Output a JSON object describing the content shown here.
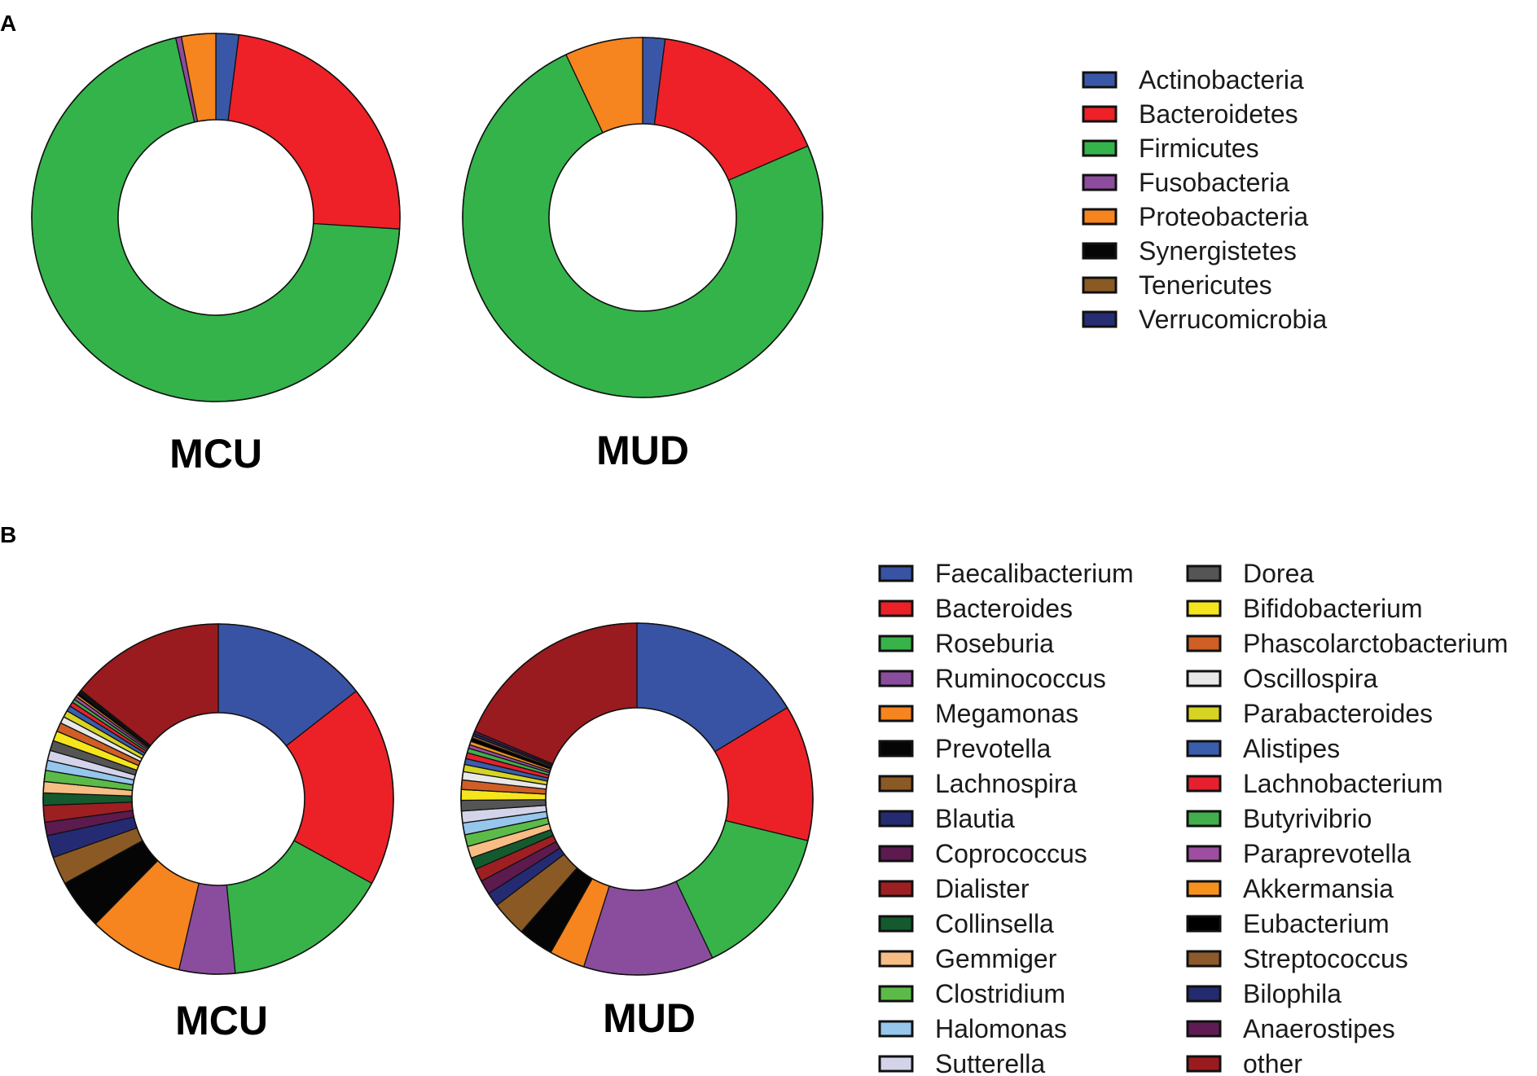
{
  "panels": {
    "a_label": "A",
    "b_label": "B"
  },
  "chart_data": [
    {
      "type": "pie",
      "panel": "A",
      "variant": "donut",
      "legend_position": "right",
      "categories": [
        "Actinobacteria",
        "Bacteroidetes",
        "Firmicutes",
        "Fusobacteria",
        "Proteobacteria",
        "Synergistetes",
        "Tenericutes",
        "Verrucomicrobia"
      ],
      "colors": [
        "#3a57a7",
        "#ed2127",
        "#34b34a",
        "#8e4c9e",
        "#f6841f",
        "#050505",
        "#8a5a24",
        "#262d72"
      ],
      "series": [
        {
          "name": "MCU",
          "values": [
            2.0,
            24.0,
            70.5,
            0.5,
            3.0,
            0.0,
            0.0,
            0.0
          ]
        },
        {
          "name": "MUD",
          "values": [
            2.0,
            16.5,
            74.5,
            0.0,
            7.0,
            0.0,
            0.0,
            0.0
          ]
        }
      ]
    },
    {
      "type": "pie",
      "panel": "B",
      "variant": "donut",
      "legend_position": "right",
      "categories": [
        "Faecalibacterium",
        "Bacteroides",
        "Roseburia",
        "Ruminococcus",
        "Megamonas",
        "Prevotella",
        "Lachnospira",
        "Blautia",
        "Coprococcus",
        "Dialister",
        "Collinsella",
        "Gemmiger",
        "Clostridium",
        "Halomonas",
        "Sutterella",
        "Dorea",
        "Bifidobacterium",
        "Phascolarctobacterium",
        "Oscillospira",
        "Parabacteroides",
        "Alistipes",
        "Lachnobacterium",
        "Butyrivibrio",
        "Paraprevotella",
        "Akkermansia",
        "Eubacterium",
        "Streptococcus",
        "Bilophila",
        "Anaerostipes",
        "other"
      ],
      "colors": [
        "#3853a4",
        "#ec2127",
        "#37b34a",
        "#8a4d9e",
        "#f6841f",
        "#050505",
        "#8b5a24",
        "#252b73",
        "#5c1a4f",
        "#9e1f22",
        "#145a2e",
        "#f7bd85",
        "#5cbb48",
        "#96c6ec",
        "#d3d3ea",
        "#555555",
        "#f4e51c",
        "#cf5f26",
        "#e8e8e8",
        "#d6d423",
        "#3a5eae",
        "#e6202e",
        "#41af4c",
        "#9e4ea0",
        "#f7911e",
        "#000000",
        "#8d5a2b",
        "#242a6e",
        "#5e1c52",
        "#9a1b1f"
      ],
      "series": [
        {
          "name": "MCU",
          "values": [
            14.0,
            18.0,
            15.0,
            5.0,
            8.5,
            4.5,
            2.5,
            2.0,
            1.2,
            1.5,
            1.1,
            1.0,
            1.0,
            0.9,
            0.9,
            0.9,
            0.9,
            0.8,
            0.6,
            0.6,
            0.5,
            0.4,
            0.3,
            0.3,
            0.2,
            0.2,
            0.1,
            0.1,
            0.1,
            13.9
          ]
        },
        {
          "name": "MUD",
          "values": [
            15.0,
            11.5,
            13.0,
            11.0,
            3.0,
            3.0,
            3.0,
            1.2,
            1.2,
            1.1,
            1.0,
            1.0,
            1.0,
            1.0,
            1.0,
            0.9,
            0.9,
            0.8,
            0.7,
            0.6,
            0.5,
            0.5,
            0.4,
            0.3,
            0.3,
            0.3,
            0.2,
            0.2,
            0.2,
            17.2
          ]
        }
      ]
    }
  ]
}
